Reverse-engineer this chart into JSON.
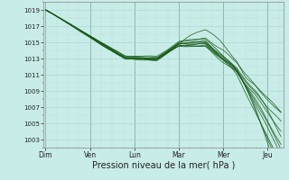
{
  "bg_color": "#c8ece8",
  "grid_color_major": "#b0d8d0",
  "grid_color_minor": "#c0e0d8",
  "line_color": "#1a5c1a",
  "xlabel": "Pression niveau de la mer( hPa )",
  "xlabel_fontsize": 7,
  "ylim": [
    1002,
    1020
  ],
  "yticks": [
    1003,
    1005,
    1007,
    1009,
    1011,
    1013,
    1015,
    1017,
    1019
  ],
  "xtick_labels": [
    "Dim",
    "Ven",
    "Lun",
    "Mar",
    "Mer",
    "Jeu"
  ],
  "xtick_positions": [
    0,
    1,
    2,
    3,
    4,
    5
  ],
  "num_days": 6,
  "num_points": 150,
  "n_lines": 11
}
